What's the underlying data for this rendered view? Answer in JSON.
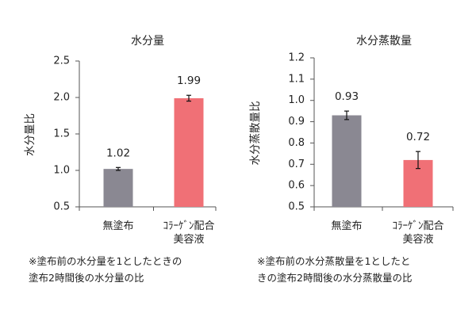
{
  "colors": {
    "untreated": "#8a8892",
    "collagen": "#f07076",
    "axis": "#555555"
  },
  "chart_data": [
    {
      "type": "bar",
      "title": "水分量",
      "ylabel": "水分量比",
      "categories": [
        "無塗布",
        "ｺﾗｰｹﾞﾝ配合\n美容液"
      ],
      "values": [
        1.02,
        1.99
      ],
      "errors": [
        0.02,
        0.04
      ],
      "value_labels": [
        "1.02",
        "1.99"
      ],
      "ylim": [
        0.5,
        2.5
      ],
      "yticks": [
        "0.5",
        "1.0",
        "1.5",
        "2.0",
        "2.5"
      ],
      "grid": false
    },
    {
      "type": "bar",
      "title": "水分蒸散量",
      "ylabel": "水分蒸散量比",
      "categories": [
        "無塗布",
        "ｺﾗｰｹﾞﾝ配合\n美容液"
      ],
      "values": [
        0.93,
        0.72
      ],
      "errors": [
        0.02,
        0.04
      ],
      "value_labels": [
        "0.93",
        "0.72"
      ],
      "ylim": [
        0.5,
        1.2
      ],
      "yticks": [
        "0.5",
        "0.6",
        "0.7",
        "0.8",
        "0.9",
        "1.0",
        "1.1",
        "1.2"
      ],
      "grid": false
    }
  ],
  "notes": [
    [
      "※塗布前の水分量を1としたときの",
      "塗布2時間後の水分量の比"
    ],
    [
      "※塗布前の水分蒸散量を1としたと",
      "きの塗布2時間後の水分蒸散量の比"
    ]
  ]
}
